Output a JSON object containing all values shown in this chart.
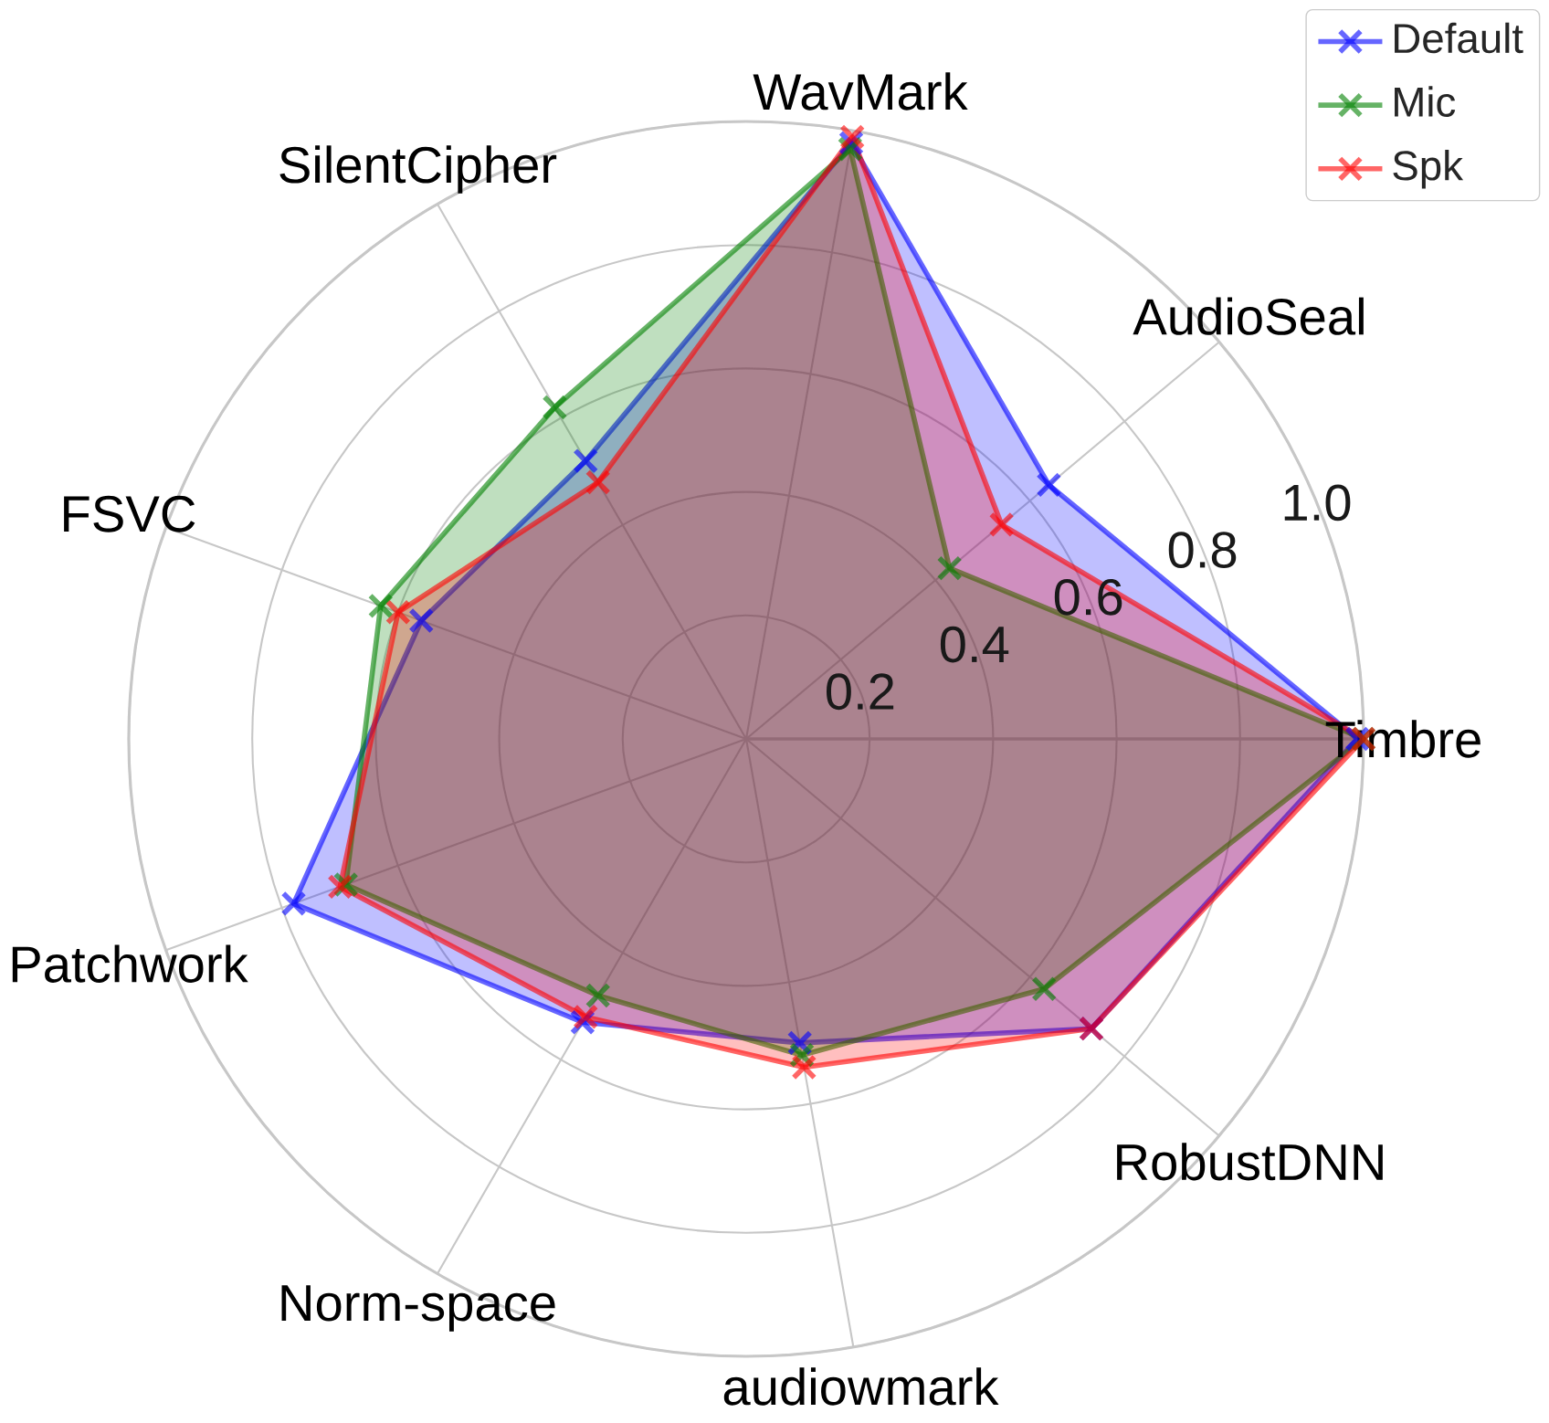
{
  "chart_data": {
    "type": "radar",
    "categories": [
      "WavMark",
      "AudioSeal",
      "Timbre",
      "RobustDNN",
      "audiowmark",
      "Norm-space",
      "Patchwork",
      "FSVC",
      "SilentCipher"
    ],
    "series": [
      {
        "name": "Default",
        "color": "#0000ff",
        "values": [
          0.98,
          0.64,
          0.99,
          0.73,
          0.5,
          0.53,
          0.78,
          0.56,
          0.52
        ]
      },
      {
        "name": "Mic",
        "color": "#008000",
        "values": [
          0.97,
          0.43,
          1.0,
          0.63,
          0.52,
          0.48,
          0.69,
          0.63,
          0.62
        ]
      },
      {
        "name": "Spk",
        "color": "#ff0000",
        "values": [
          0.99,
          0.54,
          1.0,
          0.73,
          0.54,
          0.52,
          0.7,
          0.6,
          0.48
        ]
      }
    ],
    "ylim": [
      0,
      1.0
    ],
    "yticks": [
      0.2,
      0.4,
      0.6,
      0.8,
      {
        "value": 1.0,
        "label": "1.0"
      }
    ],
    "grid": true,
    "legend": "top right",
    "marker": "cross",
    "line_style": "solid"
  }
}
